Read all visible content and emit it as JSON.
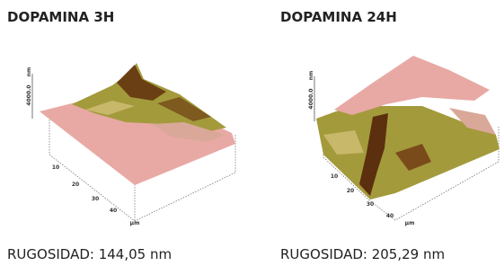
{
  "panels": [
    {
      "title": "DOPAMINA 3H",
      "caption": "RUGOSIDAD: 144,05 nm",
      "z_label": "4000.0",
      "z_unit": "nm",
      "axis_ticks": [
        "10",
        "20",
        "30",
        "40"
      ],
      "axis_unit": "μm"
    },
    {
      "title": "DOPAMINA 24H",
      "caption": "RUGOSIDAD: 205,29 nm",
      "z_label": "4000.0",
      "z_unit": "nm",
      "axis_ticks": [
        "10",
        "20",
        "30",
        "40"
      ],
      "axis_unit": "μm"
    }
  ]
}
